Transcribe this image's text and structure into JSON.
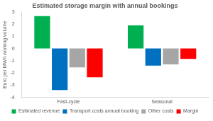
{
  "chart_data": {
    "type": "bar",
    "title": "Estimated storage margin with annual bookings",
    "y_label": "Euro per MWh working volume",
    "categories": [
      "Fast-cycle",
      "Seasonal"
    ],
    "series": [
      {
        "name": "Estimated revenue",
        "color": "#00b050",
        "values": [
          2.65,
          1.9
        ]
      },
      {
        "name": "Transport costs annual booking",
        "color": "#0070c0",
        "values": [
          -3.4,
          -1.4
        ]
      },
      {
        "name": "Other costs",
        "color": "#a6a6a6",
        "values": [
          -1.55,
          -1.3
        ]
      },
      {
        "name": "Margin",
        "color": "#ff0000",
        "values": [
          -2.35,
          -0.85
        ]
      }
    ],
    "ylim": [
      -4,
      3
    ],
    "yticks": [
      -4,
      -3,
      -2,
      -1,
      0,
      1,
      2,
      3
    ],
    "grid": false,
    "legend": "bottom"
  }
}
